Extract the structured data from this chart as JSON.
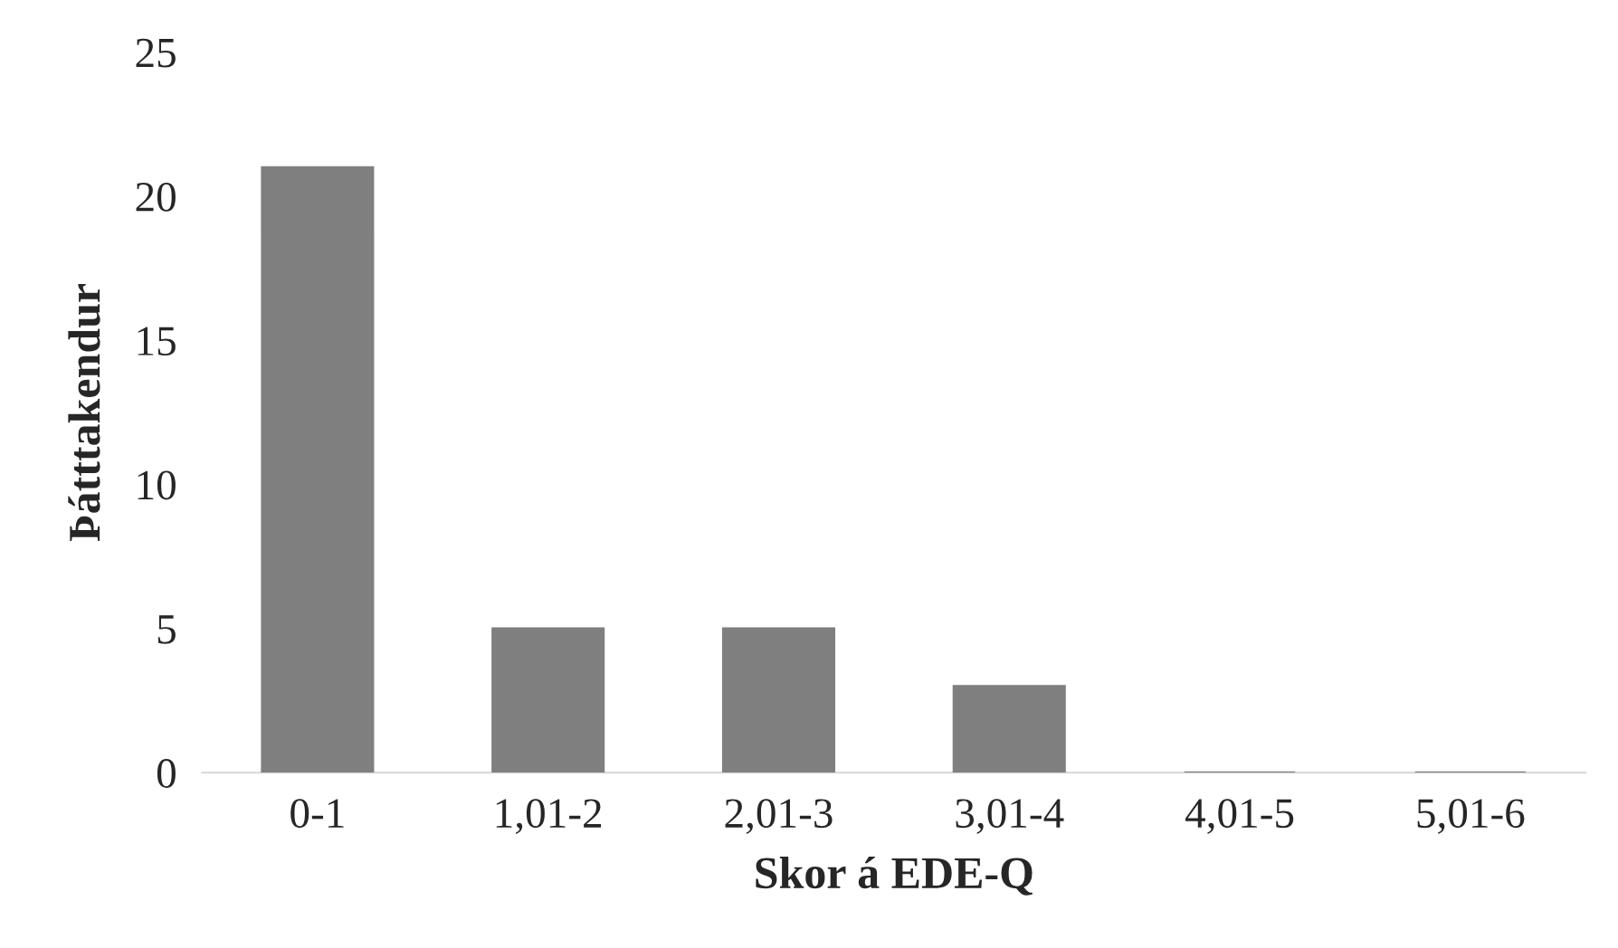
{
  "chart_data": {
    "type": "bar",
    "xlabel": "Skor á EDE-Q",
    "ylabel": "Þátttakendur",
    "categories": [
      "0-1",
      "1,01-2",
      "2,01-3",
      "3,01-4",
      "4,01-5",
      "5,01-6"
    ],
    "values": [
      21,
      5,
      5,
      3,
      0,
      0
    ],
    "color": "#7f7f7f",
    "ylim": [
      0,
      25
    ],
    "yticks": [
      0,
      5,
      10,
      15,
      20,
      25
    ],
    "grid": false,
    "legend": false
  }
}
